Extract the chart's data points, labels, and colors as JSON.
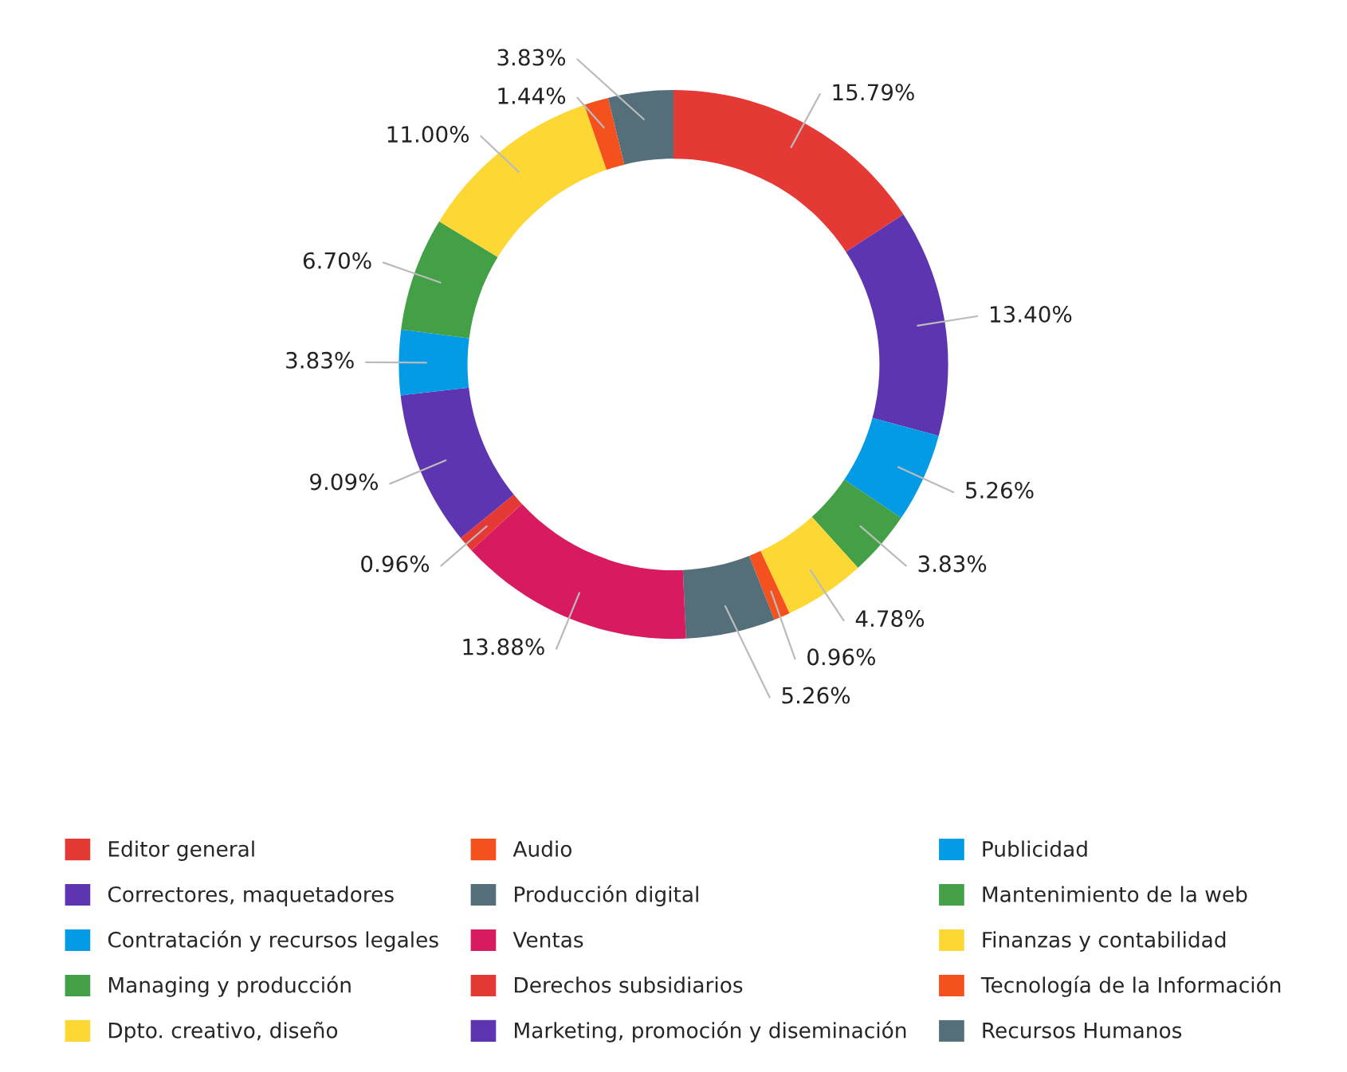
{
  "chart_data": {
    "type": "donut",
    "categories": [
      "Editor general",
      "Correctores, maquetadores",
      "Contratación y recursos legales",
      "Managing y producción",
      "Dpto. creativo, diseño",
      "Audio",
      "Producción digital",
      "Ventas",
      "Derechos subsidiarios",
      "Marketing, promoción y diseminación",
      "Publicidad",
      "Mantenimiento de la web",
      "Finanzas y contabilidad",
      "Tecnología de la Información",
      "Recursos Humanos"
    ],
    "values": [
      15.79,
      13.4,
      5.26,
      3.83,
      4.78,
      0.96,
      5.26,
      13.88,
      0.96,
      9.09,
      3.83,
      6.7,
      11.0,
      1.44,
      3.83
    ],
    "value_labels": [
      "15.79%",
      "13.40%",
      "5.26%",
      "3.83%",
      "4.78%",
      "0.96%",
      "5.26%",
      "13.88%",
      "0.96%",
      "9.09%",
      "3.83%",
      "6.70%",
      "11.00%",
      "1.44%",
      "3.83%"
    ],
    "colors": [
      "#e53935",
      "#5e35b1",
      "#039be5",
      "#43a047",
      "#fdd835",
      "#f4511e",
      "#546e7a",
      "#d81b60",
      "#e53935",
      "#5e35b1",
      "#039be5",
      "#43a047",
      "#fdd835",
      "#f4511e",
      "#546e7a"
    ],
    "legend": "bottom"
  }
}
